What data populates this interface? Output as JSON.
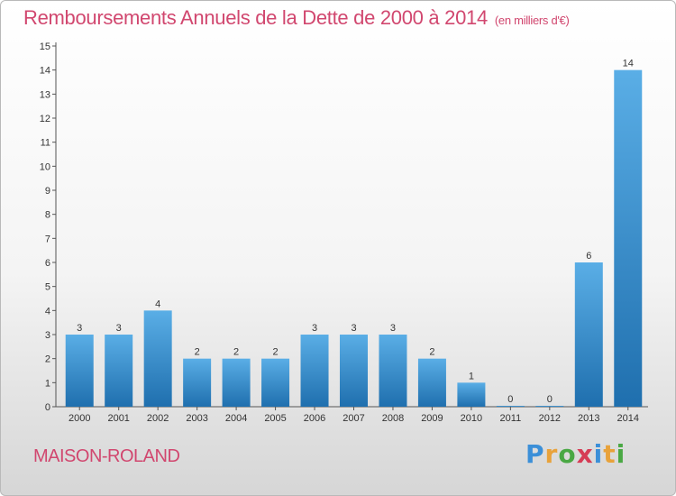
{
  "header": {
    "title": "Remboursements Annuels de la Dette de 2000 à 2014",
    "unit": "(en milliers d'€)"
  },
  "footer": {
    "commune": "MAISON-ROLAND",
    "logo_text": "Proxiti"
  },
  "colors": {
    "accent": "#d1476f",
    "bar_top": "#5aaee6",
    "bar_bottom": "#1f6fae"
  },
  "chart_data": {
    "type": "bar",
    "title": "Remboursements Annuels de la Dette de 2000 à 2014",
    "categories": [
      "2000",
      "2001",
      "2002",
      "2003",
      "2004",
      "2005",
      "2006",
      "2007",
      "2008",
      "2009",
      "2010",
      "2011",
      "2012",
      "2013",
      "2014"
    ],
    "values": [
      3,
      3,
      4,
      2,
      2,
      2,
      3,
      3,
      3,
      2,
      1,
      0,
      0,
      6,
      14
    ],
    "ylim": [
      0,
      15
    ],
    "yticks": [
      0,
      1,
      2,
      3,
      4,
      5,
      6,
      7,
      8,
      9,
      10,
      11,
      12,
      13,
      14,
      15
    ],
    "grid": false,
    "data_labels": true
  }
}
